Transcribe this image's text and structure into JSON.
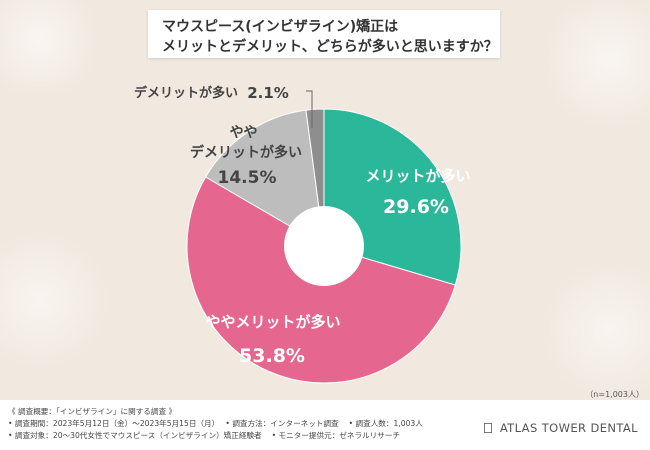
{
  "title": {
    "line1": "マウスピース(インビザライン)矯正は",
    "line2": "メリットとデメリット、どちらが多いと思いますか？"
  },
  "chart_data": {
    "type": "pie",
    "style": "donut",
    "slices": [
      {
        "label": "メリットが多い",
        "value": 29.6,
        "value_label": "29.6%",
        "color": "#2bb79a"
      },
      {
        "label": "ややメリットが多い",
        "value": 53.8,
        "value_label": "53.8%",
        "color": "#e5668f"
      },
      {
        "label": "やや\nデメリットが多い",
        "value": 14.5,
        "value_label": "14.5%",
        "color": "#bdbdbd"
      },
      {
        "label": "デメリットが多い",
        "value": 2.1,
        "value_label": "2.1%",
        "color": "#8e8e8e"
      }
    ],
    "sample_size": "（n=1,003人）"
  },
  "footer": {
    "line1": "《 調査概要：「インビザライン」に関する調査 》",
    "line2": "• 調査期間：2023年5月12日（金）～2023年5月15日（月）　 • 調査方法：インターネット調査　 • 調査人数：1,003人",
    "line3": "• 調査対象：20～30代女性でマウスピース（インビザライン）矯正経験者　 • モニター提供元：ゼネラルリサーチ",
    "brand": "ATLAS TOWER DENTAL"
  }
}
